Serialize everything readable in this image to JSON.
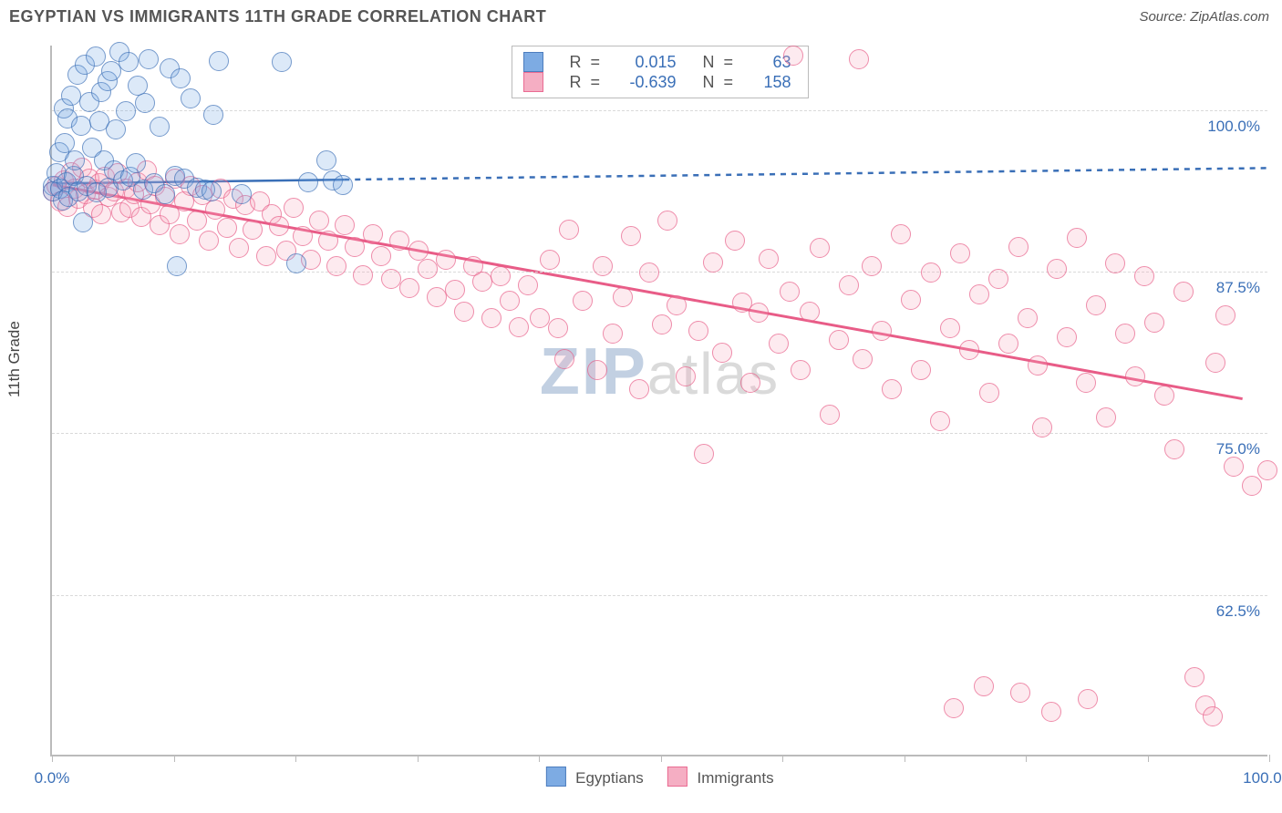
{
  "title": "EGYPTIAN VS IMMIGRANTS 11TH GRADE CORRELATION CHART",
  "source_label": "Source: ZipAtlas.com",
  "ylabel": "11th Grade",
  "watermark": {
    "bold": "ZIP",
    "rest": "atlas"
  },
  "chart": {
    "type": "scatter-with-regression",
    "background_color": "#ffffff",
    "grid_color": "#d9d9d9",
    "axis_color": "#bbbbbb",
    "tick_label_color": "#3a6fb7",
    "marker_radius": 10,
    "marker_fill_opacity": 0.35,
    "marker_stroke_width": 1.5,
    "xlim": [
      0,
      100
    ],
    "ylim": [
      50,
      105
    ],
    "x_ticks": [
      0,
      10,
      20,
      30,
      40,
      50,
      60,
      70,
      80,
      90,
      100
    ],
    "x_tick_labels": {
      "0": "0.0%",
      "100": "100.0%"
    },
    "y_gridlines": [
      62.5,
      75.0,
      87.5,
      100.0
    ],
    "y_tick_labels": [
      "62.5%",
      "75.0%",
      "87.5%",
      "100.0%"
    ],
    "series": {
      "egyptians": {
        "name": "Egyptians",
        "color_fill": "#6fa3e0",
        "color_stroke": "#3a6fb7",
        "R": "0.015",
        "N": "63",
        "regression": {
          "solid": {
            "x1": 0,
            "y1": 94.3,
            "x2": 24,
            "y2": 94.6
          },
          "dashed": {
            "x1": 24,
            "y1": 94.6,
            "x2": 100,
            "y2": 95.5
          },
          "stroke_width": 2.5,
          "dash": "6 6"
        },
        "points": [
          [
            0,
            94.2
          ],
          [
            0,
            93.8
          ],
          [
            0.3,
            95.2
          ],
          [
            0.5,
            96.8
          ],
          [
            0.6,
            94.0
          ],
          [
            0.8,
            93.1
          ],
          [
            0.9,
            100.2
          ],
          [
            1.0,
            97.5
          ],
          [
            1.1,
            94.5
          ],
          [
            1.2,
            99.4
          ],
          [
            1.3,
            93.4
          ],
          [
            1.5,
            101.2
          ],
          [
            1.7,
            95.0
          ],
          [
            1.8,
            96.2
          ],
          [
            2.0,
            102.8
          ],
          [
            2.1,
            93.8
          ],
          [
            2.3,
            98.9
          ],
          [
            2.5,
            91.4
          ],
          [
            2.6,
            103.6
          ],
          [
            2.8,
            94.2
          ],
          [
            3.0,
            100.7
          ],
          [
            3.2,
            97.2
          ],
          [
            3.5,
            104.2
          ],
          [
            3.6,
            93.7
          ],
          [
            3.8,
            99.2
          ],
          [
            4.0,
            101.5
          ],
          [
            4.2,
            96.2
          ],
          [
            4.5,
            102.3
          ],
          [
            4.6,
            94.1
          ],
          [
            4.8,
            103.1
          ],
          [
            5.0,
            95.4
          ],
          [
            5.2,
            98.6
          ],
          [
            5.5,
            104.6
          ],
          [
            5.8,
            94.6
          ],
          [
            6.0,
            100.0
          ],
          [
            6.2,
            103.8
          ],
          [
            6.4,
            94.9
          ],
          [
            6.8,
            96.0
          ],
          [
            7.0,
            102.0
          ],
          [
            7.4,
            93.9
          ],
          [
            7.6,
            100.6
          ],
          [
            7.9,
            104.0
          ],
          [
            8.3,
            94.4
          ],
          [
            8.8,
            98.8
          ],
          [
            9.2,
            93.6
          ],
          [
            9.6,
            103.3
          ],
          [
            10.0,
            95.0
          ],
          [
            10.5,
            102.5
          ],
          [
            10.2,
            88.0
          ],
          [
            10.8,
            94.8
          ],
          [
            11.3,
            101.0
          ],
          [
            11.8,
            94.1
          ],
          [
            12.5,
            93.9
          ],
          [
            13.2,
            99.7
          ],
          [
            13.6,
            103.9
          ],
          [
            13.0,
            93.8
          ],
          [
            15.5,
            93.6
          ],
          [
            18.8,
            103.8
          ],
          [
            20.0,
            88.2
          ],
          [
            21.0,
            94.5
          ],
          [
            22.5,
            96.2
          ],
          [
            23.0,
            94.6
          ],
          [
            23.8,
            94.3
          ]
        ]
      },
      "immigrants": {
        "name": "Immigrants",
        "color_fill": "#f5a6bd",
        "color_stroke": "#e85c87",
        "R": "-0.639",
        "N": "158",
        "regression": {
          "solid": {
            "x1": 0,
            "y1": 94.2,
            "x2": 98,
            "y2": 77.6
          },
          "stroke_width": 3
        },
        "points": [
          [
            0,
            93.8
          ],
          [
            0.3,
            94.2
          ],
          [
            0.6,
            93.0
          ],
          [
            0.9,
            94.6
          ],
          [
            1.2,
            92.6
          ],
          [
            1.5,
            95.3
          ],
          [
            1.8,
            94.0
          ],
          [
            2.1,
            93.2
          ],
          [
            2.4,
            95.6
          ],
          [
            2.7,
            93.6
          ],
          [
            3.0,
            94.8
          ],
          [
            3.3,
            92.5
          ],
          [
            3.5,
            93.9
          ],
          [
            3.8,
            94.4
          ],
          [
            4.0,
            92.0
          ],
          [
            4.3,
            94.9
          ],
          [
            4.6,
            93.4
          ],
          [
            5.0,
            93.8
          ],
          [
            5.3,
            95.2
          ],
          [
            5.6,
            92.2
          ],
          [
            6.0,
            94.0
          ],
          [
            6.3,
            92.5
          ],
          [
            6.7,
            93.6
          ],
          [
            7.0,
            94.5
          ],
          [
            7.3,
            91.8
          ],
          [
            7.7,
            95.4
          ],
          [
            8.0,
            92.8
          ],
          [
            8.4,
            94.2
          ],
          [
            8.8,
            91.2
          ],
          [
            9.2,
            93.4
          ],
          [
            9.6,
            92.0
          ],
          [
            10.0,
            94.8
          ],
          [
            10.4,
            90.5
          ],
          [
            10.8,
            93.0
          ],
          [
            11.3,
            94.2
          ],
          [
            11.8,
            91.5
          ],
          [
            12.3,
            93.5
          ],
          [
            12.8,
            90.0
          ],
          [
            13.3,
            92.4
          ],
          [
            13.8,
            94.0
          ],
          [
            14.3,
            91.0
          ],
          [
            14.8,
            93.2
          ],
          [
            15.3,
            89.4
          ],
          [
            15.8,
            92.7
          ],
          [
            16.4,
            90.8
          ],
          [
            17.0,
            93.0
          ],
          [
            17.5,
            88.8
          ],
          [
            18.0,
            92.0
          ],
          [
            18.6,
            91.1
          ],
          [
            19.2,
            89.2
          ],
          [
            19.8,
            92.5
          ],
          [
            20.5,
            90.3
          ],
          [
            21.2,
            88.5
          ],
          [
            21.9,
            91.5
          ],
          [
            22.6,
            90.0
          ],
          [
            23.3,
            88.0
          ],
          [
            24.0,
            91.2
          ],
          [
            24.8,
            89.5
          ],
          [
            25.5,
            87.3
          ],
          [
            26.3,
            90.5
          ],
          [
            27.0,
            88.8
          ],
          [
            27.8,
            87.0
          ],
          [
            28.5,
            90.0
          ],
          [
            29.3,
            86.3
          ],
          [
            30.0,
            89.2
          ],
          [
            30.8,
            87.8
          ],
          [
            31.5,
            85.6
          ],
          [
            32.3,
            88.5
          ],
          [
            33.0,
            86.2
          ],
          [
            33.8,
            84.5
          ],
          [
            34.5,
            88.0
          ],
          [
            35.3,
            86.8
          ],
          [
            36.0,
            84.0
          ],
          [
            36.8,
            87.2
          ],
          [
            37.5,
            85.3
          ],
          [
            38.3,
            83.3
          ],
          [
            39.0,
            86.5
          ],
          [
            40.0,
            84.0
          ],
          [
            40.8,
            88.5
          ],
          [
            41.5,
            83.2
          ],
          [
            42.0,
            80.8
          ],
          [
            42.4,
            90.8
          ],
          [
            43.5,
            85.3
          ],
          [
            44.7,
            80.0
          ],
          [
            45.2,
            88.0
          ],
          [
            46.0,
            82.8
          ],
          [
            46.8,
            85.6
          ],
          [
            47.5,
            90.3
          ],
          [
            48.2,
            78.5
          ],
          [
            49.0,
            87.5
          ],
          [
            50.0,
            83.5
          ],
          [
            50.5,
            91.5
          ],
          [
            51.2,
            85.0
          ],
          [
            52.0,
            79.5
          ],
          [
            53.0,
            83.0
          ],
          [
            53.5,
            73.5
          ],
          [
            54.2,
            88.3
          ],
          [
            55.0,
            81.3
          ],
          [
            56.0,
            90.0
          ],
          [
            56.6,
            85.2
          ],
          [
            57.3,
            79.0
          ],
          [
            58.0,
            84.4
          ],
          [
            58.8,
            88.6
          ],
          [
            59.6,
            82.0
          ],
          [
            60.5,
            86.0
          ],
          [
            60.8,
            104.3
          ],
          [
            61.4,
            80.0
          ],
          [
            62.2,
            84.5
          ],
          [
            63.0,
            89.4
          ],
          [
            63.8,
            76.5
          ],
          [
            64.6,
            82.3
          ],
          [
            65.4,
            86.5
          ],
          [
            66.2,
            104.0
          ],
          [
            66.5,
            80.8
          ],
          [
            67.3,
            88.0
          ],
          [
            68.1,
            83.0
          ],
          [
            68.9,
            78.5
          ],
          [
            69.7,
            90.5
          ],
          [
            70.5,
            85.4
          ],
          [
            71.3,
            80.0
          ],
          [
            72.1,
            87.5
          ],
          [
            72.9,
            76.0
          ],
          [
            73.7,
            83.2
          ],
          [
            74.5,
            89.0
          ],
          [
            75.3,
            81.5
          ],
          [
            76.1,
            85.8
          ],
          [
            76.9,
            78.2
          ],
          [
            77.7,
            87.0
          ],
          [
            78.5,
            82.0
          ],
          [
            79.3,
            89.5
          ],
          [
            80.1,
            84.0
          ],
          [
            80.9,
            80.3
          ],
          [
            81.3,
            75.5
          ],
          [
            82.5,
            87.8
          ],
          [
            83.3,
            82.5
          ],
          [
            84.1,
            90.2
          ],
          [
            84.9,
            79.0
          ],
          [
            85.7,
            85.0
          ],
          [
            86.5,
            76.3
          ],
          [
            87.3,
            88.2
          ],
          [
            88.1,
            82.8
          ],
          [
            88.9,
            79.5
          ],
          [
            89.7,
            87.2
          ],
          [
            90.5,
            83.6
          ],
          [
            91.3,
            78.0
          ],
          [
            92.1,
            73.8
          ],
          [
            92.9,
            86.0
          ],
          [
            93.8,
            56.2
          ],
          [
            94.7,
            54.0
          ],
          [
            95.3,
            53.2
          ],
          [
            95.5,
            80.5
          ],
          [
            96.3,
            84.2
          ],
          [
            97.0,
            72.5
          ],
          [
            98.5,
            71.0
          ],
          [
            99.8,
            72.2
          ],
          [
            74.0,
            53.8
          ],
          [
            79.5,
            55.0
          ],
          [
            85.0,
            54.5
          ],
          [
            76.5,
            55.5
          ],
          [
            82.0,
            53.5
          ]
        ]
      }
    },
    "legend_bottom": [
      {
        "key": "egyptians",
        "label": "Egyptians"
      },
      {
        "key": "immigrants",
        "label": "Immigrants"
      }
    ]
  }
}
